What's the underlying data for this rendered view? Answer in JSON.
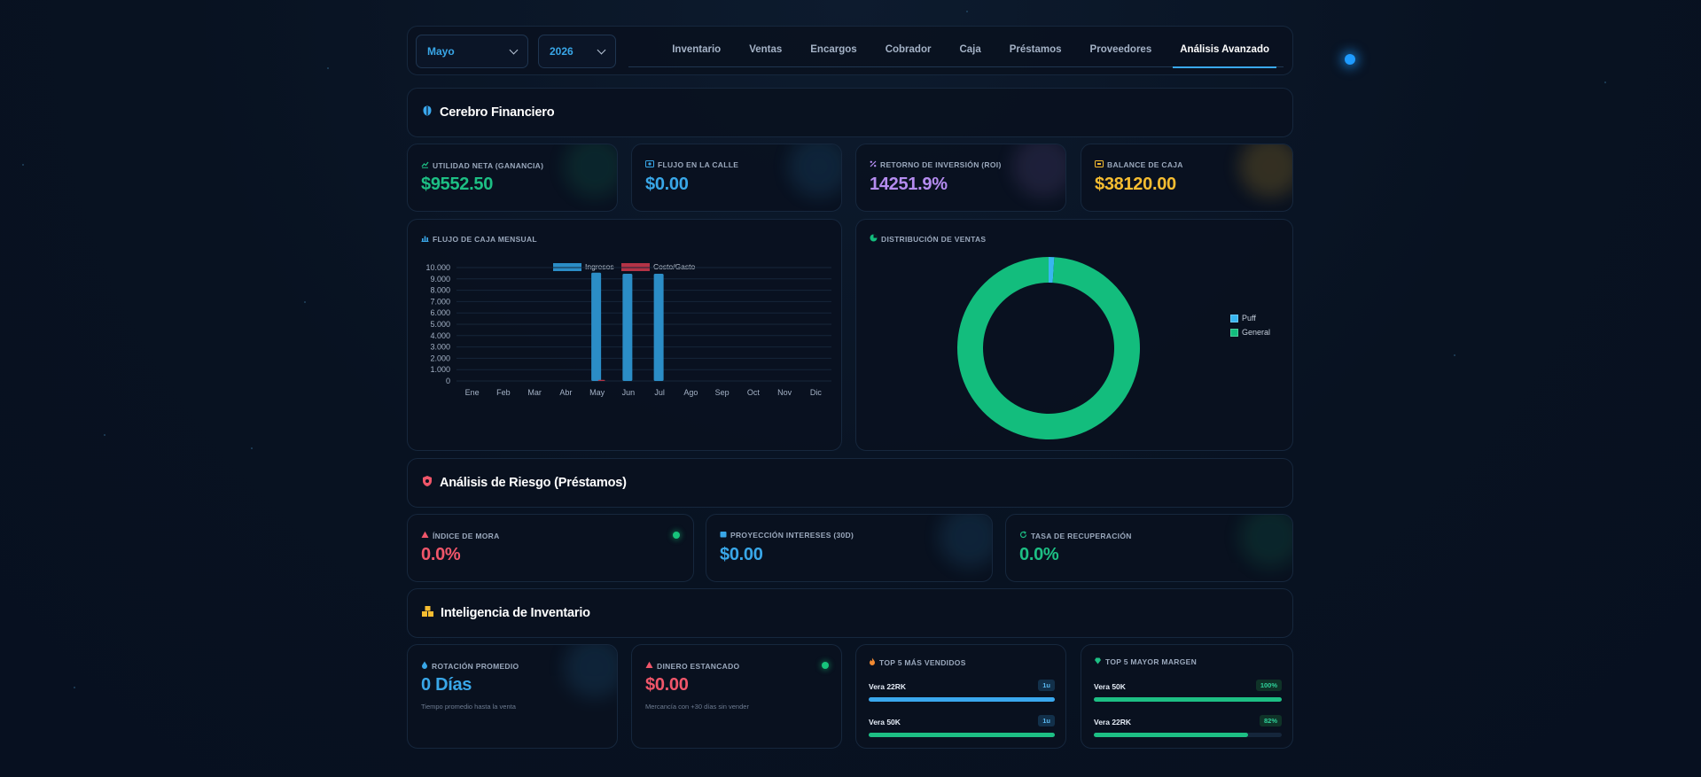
{
  "colors": {
    "accent": "#3aa8ee",
    "green": "#1dbf84",
    "blue": "#39a7e8",
    "purple": "#b58cf0",
    "yellow": "#f6bd31",
    "red": "#f0566a",
    "bar_ingresos": "#2b8dc6",
    "bar_costo": "#b43346"
  },
  "topbar": {
    "month_select": {
      "value": "Mayo"
    },
    "year_select": {
      "value": "2026"
    },
    "tabs": [
      {
        "label": "Inventario"
      },
      {
        "label": "Ventas"
      },
      {
        "label": "Encargos"
      },
      {
        "label": "Cobrador"
      },
      {
        "label": "Caja"
      },
      {
        "label": "Préstamos"
      },
      {
        "label": "Proveedores"
      },
      {
        "label": "Análisis Avanzado",
        "active": true
      }
    ]
  },
  "sections": {
    "financiero": {
      "title": "Cerebro Financiero",
      "icon": "brain-icon"
    },
    "riesgo": {
      "title": "Análisis de Riesgo (Préstamos)",
      "icon": "shield-icon"
    },
    "inventario": {
      "title": "Inteligencia de Inventario",
      "icon": "boxes-icon"
    }
  },
  "kpis": {
    "utilidad": {
      "label": "UTILIDAD NETA (GANANCIA)",
      "value": "$9552.50",
      "icon": "trend-icon"
    },
    "flujo": {
      "label": "FLUJO EN LA CALLE",
      "value": "$0.00",
      "icon": "money-icon"
    },
    "roi": {
      "label": "RETORNO DE INVERSIÓN (ROI)",
      "value": "14251.9%",
      "icon": "percent-icon"
    },
    "balance": {
      "label": "BALANCE DE CAJA",
      "value": "$38120.00",
      "icon": "cashbox-icon"
    },
    "mora": {
      "label": "ÍNDICE DE MORA",
      "value": "0.0%",
      "icon": "warning-icon"
    },
    "proyeccion": {
      "label": "PROYECCIÓN INTERESES (30D)",
      "value": "$0.00",
      "icon": "calendar-icon"
    },
    "recuperacion": {
      "label": "TASA DE RECUPERACIÓN",
      "value": "0.0%",
      "icon": "refresh-icon"
    },
    "rotacion": {
      "label": "ROTACIÓN PROMEDIO",
      "value": "0 Días",
      "sub": "Tiempo promedio hasta la venta",
      "icon": "drop-icon"
    },
    "estancado": {
      "label": "DINERO ESTANCADO",
      "value": "$0.00",
      "sub": "Mercancía con +30 días sin vender",
      "icon": "warning-icon"
    }
  },
  "top_vendidos": {
    "label": "TOP 5 MÁS VENDIDOS",
    "icon": "fire-icon",
    "items": [
      {
        "name": "Vera 22RK",
        "badge": "1u",
        "level": 1.0
      },
      {
        "name": "Vera 50K",
        "badge": "1u",
        "level": 1.0
      }
    ]
  },
  "top_margen": {
    "label": "TOP 5 MAYOR MARGEN",
    "icon": "gem-icon",
    "items": [
      {
        "name": "Vera 50K",
        "badge": "100%",
        "level": 1.0
      },
      {
        "name": "Vera 22RK",
        "badge": "82%",
        "level": 0.82
      }
    ]
  },
  "chart_data": [
    {
      "type": "bar",
      "title": "FLUJO DE CAJA MENSUAL",
      "categories": [
        "Ene",
        "Feb",
        "Mar",
        "Abr",
        "May",
        "Jun",
        "Jul",
        "Ago",
        "Sep",
        "Oct",
        "Nov",
        "Dic"
      ],
      "series": [
        {
          "name": "Ingresos",
          "values": [
            0,
            0,
            0,
            0,
            9550,
            9450,
            9450,
            0,
            0,
            0,
            0,
            0
          ]
        },
        {
          "name": "Costo/Gasto",
          "values": [
            0,
            0,
            0,
            0,
            100,
            0,
            0,
            0,
            0,
            0,
            0,
            0
          ]
        }
      ],
      "yticks": [
        "0",
        "1.000",
        "2.000",
        "3.000",
        "4.000",
        "5.000",
        "6.000",
        "7.000",
        "8.000",
        "9.000",
        "10.000"
      ],
      "ylim": [
        0,
        10000
      ],
      "grid": true,
      "legend": "top"
    },
    {
      "type": "pie",
      "title": "DISTRIBUCIÓN DE VENTAS",
      "donut": true,
      "labels": [
        "Puff",
        "General"
      ],
      "values": [
        1,
        99
      ],
      "colors": [
        "#38b6f0",
        "#13bd7d"
      ],
      "legend": "right"
    }
  ]
}
